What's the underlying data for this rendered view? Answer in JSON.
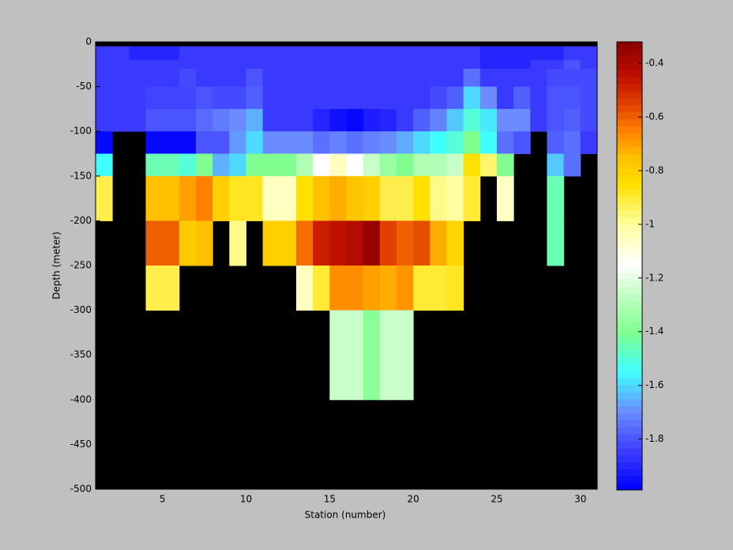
{
  "chart_data": {
    "type": "heatmap",
    "xlabel": "Station (number)",
    "ylabel": "Depth (meter)",
    "xlim": [
      1,
      31
    ],
    "ylim": [
      -500,
      0
    ],
    "xticks": [
      5,
      10,
      15,
      20,
      25,
      30
    ],
    "yticks": [
      0,
      -50,
      -100,
      -150,
      -200,
      -250,
      -300,
      -350,
      -400,
      -450,
      -500
    ],
    "x_edges": [
      1,
      2,
      3,
      4,
      5,
      6,
      7,
      8,
      9,
      10,
      11,
      12,
      13,
      14,
      15,
      16,
      17,
      18,
      19,
      20,
      21,
      22,
      23,
      24,
      25,
      26,
      27,
      28,
      29,
      30,
      31
    ],
    "y_edges": [
      0,
      -5,
      -20,
      -30,
      -50,
      -75,
      -100,
      -125,
      -150,
      -200,
      -250,
      -300,
      -400,
      -500
    ],
    "clim": [
      -1.99,
      -0.32
    ],
    "cticks": [
      -0.4,
      -0.6,
      -0.8,
      -1,
      -1.2,
      -1.4,
      -1.6,
      -1.8
    ],
    "background": "#000000",
    "colormap": [
      {
        "value": -1.99,
        "color": "#0000ff"
      },
      {
        "value": -1.85,
        "color": "#3a3aff"
      },
      {
        "value": -1.7,
        "color": "#6a8cff"
      },
      {
        "value": -1.55,
        "color": "#40ffff"
      },
      {
        "value": -1.4,
        "color": "#80ff90"
      },
      {
        "value": -1.25,
        "color": "#c8ffc8"
      },
      {
        "value": -1.15,
        "color": "#ffffff"
      },
      {
        "value": -1.0,
        "color": "#ffffa0"
      },
      {
        "value": -0.85,
        "color": "#ffe000"
      },
      {
        "value": -0.75,
        "color": "#ffc000"
      },
      {
        "value": -0.65,
        "color": "#ff8000"
      },
      {
        "value": -0.55,
        "color": "#e04000"
      },
      {
        "value": -0.45,
        "color": "#c01000"
      },
      {
        "value": -0.32,
        "color": "#8b0000"
      }
    ],
    "values": [
      [
        null,
        null,
        null,
        null,
        null,
        null,
        null,
        null,
        null,
        null,
        null,
        null,
        null,
        null,
        null,
        null,
        null,
        null,
        null,
        null,
        null,
        null,
        null,
        null,
        null,
        null,
        null,
        null,
        null,
        null
      ],
      [
        -1.85,
        -1.85,
        -1.9,
        -1.9,
        -1.9,
        -1.85,
        -1.85,
        -1.85,
        -1.85,
        -1.85,
        -1.85,
        -1.85,
        -1.85,
        -1.85,
        -1.85,
        -1.85,
        -1.85,
        -1.85,
        -1.85,
        -1.85,
        -1.85,
        -1.85,
        -1.85,
        -1.9,
        -1.9,
        -1.9,
        -1.9,
        -1.9,
        -1.85,
        -1.85
      ],
      [
        -1.85,
        -1.85,
        -1.85,
        -1.85,
        -1.85,
        -1.85,
        -1.85,
        -1.85,
        -1.85,
        -1.85,
        -1.85,
        -1.85,
        -1.85,
        -1.85,
        -1.85,
        -1.85,
        -1.85,
        -1.85,
        -1.85,
        -1.85,
        -1.85,
        -1.85,
        -1.85,
        -1.9,
        -1.9,
        -1.9,
        -1.85,
        -1.85,
        -1.8,
        -1.85
      ],
      [
        -1.85,
        -1.85,
        -1.85,
        -1.85,
        -1.85,
        -1.82,
        -1.85,
        -1.85,
        -1.85,
        -1.8,
        -1.85,
        -1.85,
        -1.85,
        -1.85,
        -1.85,
        -1.85,
        -1.85,
        -1.85,
        -1.85,
        -1.85,
        -1.85,
        -1.85,
        -1.75,
        -1.85,
        -1.85,
        -1.85,
        -1.85,
        -1.82,
        -1.82,
        -1.82
      ],
      [
        -1.85,
        -1.85,
        -1.85,
        -1.83,
        -1.83,
        -1.83,
        -1.8,
        -1.82,
        -1.82,
        -1.78,
        -1.85,
        -1.85,
        -1.85,
        -1.85,
        -1.85,
        -1.85,
        -1.85,
        -1.85,
        -1.85,
        -1.85,
        -1.82,
        -1.78,
        -1.6,
        -1.7,
        -1.85,
        -1.78,
        -1.85,
        -1.8,
        -1.8,
        -1.82
      ],
      [
        -1.85,
        -1.85,
        -1.85,
        -1.8,
        -1.8,
        -1.8,
        -1.76,
        -1.73,
        -1.7,
        -1.65,
        -1.85,
        -1.85,
        -1.85,
        -1.9,
        -1.95,
        -1.97,
        -1.92,
        -1.9,
        -1.85,
        -1.78,
        -1.72,
        -1.62,
        -1.5,
        -1.58,
        -1.7,
        -1.7,
        -1.85,
        -1.8,
        -1.78,
        -1.82
      ],
      [
        -1.97,
        null,
        null,
        -1.97,
        -1.97,
        -1.97,
        -1.8,
        -1.8,
        -1.68,
        -1.6,
        -1.7,
        -1.7,
        -1.7,
        -1.75,
        -1.72,
        -1.75,
        -1.72,
        -1.7,
        -1.66,
        -1.6,
        -1.55,
        -1.5,
        -1.4,
        -1.55,
        -1.75,
        -1.8,
        null,
        -1.78,
        -1.75,
        -1.85
      ],
      [
        -1.55,
        null,
        null,
        -1.45,
        -1.45,
        -1.5,
        -1.4,
        -1.65,
        -1.6,
        -1.4,
        -1.4,
        -1.4,
        -1.3,
        -1.15,
        -1.05,
        -1.15,
        -1.25,
        -1.35,
        -1.4,
        -1.3,
        -1.3,
        -1.25,
        -0.85,
        -0.95,
        -1.4,
        null,
        null,
        -1.62,
        -1.75,
        null
      ],
      [
        -0.92,
        null,
        null,
        -0.75,
        -0.75,
        -0.7,
        -0.65,
        -0.8,
        -0.88,
        -0.88,
        -1.05,
        -1.05,
        -0.85,
        -0.75,
        -0.72,
        -0.77,
        -0.8,
        -0.92,
        -0.92,
        -0.85,
        -0.98,
        -1.0,
        -0.9,
        null,
        -1.05,
        null,
        null,
        -1.45,
        null,
        null
      ],
      [
        null,
        null,
        null,
        -0.6,
        -0.6,
        -0.78,
        -0.75,
        null,
        -0.98,
        null,
        -0.8,
        -0.8,
        -0.62,
        -0.48,
        -0.45,
        -0.42,
        -0.35,
        -0.55,
        -0.6,
        -0.57,
        -0.72,
        -0.82,
        null,
        null,
        null,
        null,
        null,
        -1.45,
        null,
        null
      ],
      [
        null,
        null,
        null,
        -0.92,
        -0.92,
        null,
        null,
        null,
        null,
        null,
        null,
        null,
        -1.05,
        -0.9,
        -0.67,
        -0.67,
        -0.7,
        -0.72,
        -0.68,
        -0.9,
        -0.9,
        -0.88,
        null,
        null,
        null,
        null,
        null,
        null,
        null,
        null
      ],
      [
        null,
        null,
        null,
        null,
        null,
        null,
        null,
        null,
        null,
        null,
        null,
        null,
        null,
        null,
        -1.25,
        -1.25,
        -1.38,
        -1.25,
        -1.25,
        null,
        null,
        null,
        null,
        null,
        null,
        null,
        null,
        null,
        null,
        null
      ],
      [
        null,
        null,
        null,
        null,
        null,
        null,
        null,
        null,
        null,
        null,
        null,
        null,
        null,
        null,
        null,
        null,
        null,
        null,
        null,
        null,
        null,
        null,
        null,
        null,
        null,
        null,
        null,
        null,
        null,
        null
      ]
    ]
  }
}
